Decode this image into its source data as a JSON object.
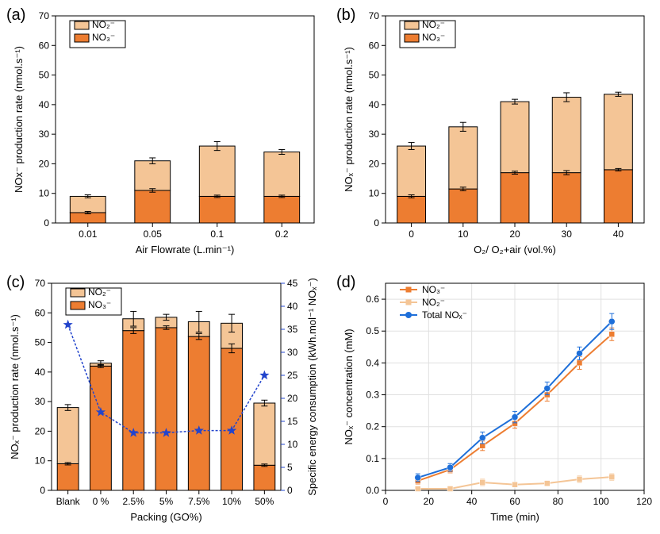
{
  "colors": {
    "no2_fill": "#f4c596",
    "no3_fill": "#ed7d31",
    "bar_stroke": "#000000",
    "axis": "#000000",
    "background": "#ffffff",
    "sec_axis": "#2244cc",
    "sec_marker": "#2244cc",
    "line_no3": "#ed7d31",
    "line_no2": "#f4c596",
    "line_total": "#1e6fd9"
  },
  "panelA": {
    "label": "(a)",
    "type": "stacked-bar",
    "xlabel": "Air Flowrate (L.min⁻¹)",
    "ylabel": "NOx⁻ production rate (nmol.s⁻¹)",
    "categories": [
      "0.01",
      "0.05",
      "0.1",
      "0.2"
    ],
    "no3": [
      3.5,
      11,
      9,
      9
    ],
    "no2": [
      5.5,
      10,
      17,
      15
    ],
    "err_total": [
      0.5,
      1,
      1.5,
      0.8
    ],
    "err_no3": [
      0.4,
      0.6,
      0.4,
      0.4
    ],
    "ylim": [
      0,
      70
    ],
    "ytick_step": 10,
    "bar_width": 0.55,
    "legend": {
      "items": [
        "NO₂⁻",
        "NO₃⁻"
      ],
      "swatches": [
        "no2_fill",
        "no3_fill"
      ]
    }
  },
  "panelB": {
    "label": "(b)",
    "type": "stacked-bar",
    "xlabel": "O₂/ O₂+air (vol.%)",
    "ylabel": "NOₓ⁻ production rate (nmol.s⁻¹)",
    "categories": [
      "0",
      "10",
      "20",
      "30",
      "40"
    ],
    "no3": [
      9,
      11.5,
      17,
      17,
      18
    ],
    "no2": [
      17,
      21,
      24,
      25.5,
      25.5
    ],
    "err_total": [
      1.2,
      1.5,
      0.8,
      1.5,
      0.7
    ],
    "err_no3": [
      0.5,
      0.6,
      0.5,
      0.7,
      0.4
    ],
    "ylim": [
      0,
      70
    ],
    "ytick_step": 10,
    "bar_width": 0.55,
    "legend": {
      "items": [
        "NO₂⁻",
        "NO₃⁻"
      ],
      "swatches": [
        "no2_fill",
        "no3_fill"
      ]
    }
  },
  "panelC": {
    "label": "(c)",
    "type": "stacked-bar-secondary",
    "xlabel": "Packing (GO%)",
    "ylabel": "NOₓ⁻ production rate (nmol.s⁻¹)",
    "ylabel2": "Specific energy consumption (kWh.mol⁻¹ NOₓ⁻)",
    "categories": [
      "Blank",
      "0 %",
      "2.5%",
      "5%",
      "7.5%",
      "10%",
      "50%"
    ],
    "no3": [
      9,
      42,
      54,
      55,
      52,
      48,
      8.5
    ],
    "no2": [
      19,
      1,
      4,
      3.5,
      5,
      8.5,
      21
    ],
    "err_total": [
      1,
      0.8,
      2.5,
      1,
      3.5,
      3,
      1
    ],
    "err_no3": [
      0.4,
      0.5,
      1,
      0.6,
      1,
      1.5,
      0.4
    ],
    "sec_values": [
      36,
      17,
      12.5,
      12.5,
      13,
      13,
      25
    ],
    "ylim": [
      0,
      70
    ],
    "ytick_step": 10,
    "ylim2": [
      0,
      45
    ],
    "ytick_step2": 5,
    "bar_width": 0.65,
    "legend": {
      "items": [
        "NO₂⁻",
        "NO₃⁻"
      ],
      "swatches": [
        "no2_fill",
        "no3_fill"
      ]
    }
  },
  "panelD": {
    "label": "(d)",
    "type": "line",
    "xlabel": "Time (min)",
    "ylabel": "NOₓ⁻ concentration (mM)",
    "xlim": [
      0,
      120
    ],
    "xtick_step": 20,
    "ylim": [
      0,
      0.65
    ],
    "ytick_step": 0.1,
    "x": [
      15,
      30,
      45,
      60,
      75,
      90,
      105
    ],
    "series": {
      "NO3": {
        "color_key": "line_no3",
        "y": [
          0.03,
          0.065,
          0.14,
          0.21,
          0.3,
          0.4,
          0.49
        ],
        "err": [
          0.01,
          0.01,
          0.015,
          0.015,
          0.02,
          0.02,
          0.02
        ]
      },
      "NO2": {
        "color_key": "line_no2",
        "y": [
          0.005,
          0.005,
          0.025,
          0.018,
          0.022,
          0.035,
          0.042
        ],
        "err": [
          0.005,
          0.005,
          0.01,
          0.008,
          0.008,
          0.01,
          0.01
        ]
      },
      "Total": {
        "color_key": "line_total",
        "y": [
          0.04,
          0.072,
          0.165,
          0.23,
          0.32,
          0.43,
          0.53
        ],
        "err": [
          0.012,
          0.012,
          0.018,
          0.018,
          0.02,
          0.02,
          0.025
        ]
      }
    },
    "legend": {
      "items": [
        "NO₃⁻",
        "NO₂⁻",
        "Total NOₓ⁻"
      ],
      "color_keys": [
        "line_no3",
        "line_no2",
        "line_total"
      ]
    }
  }
}
